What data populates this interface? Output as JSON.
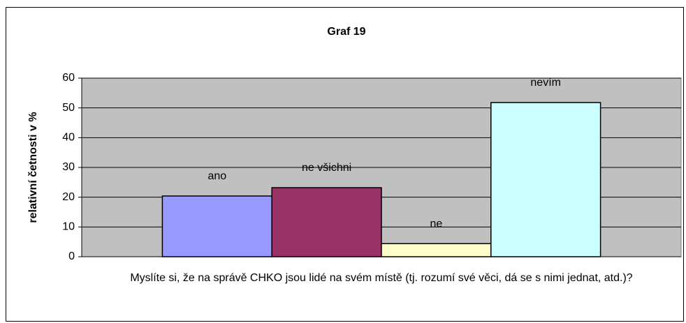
{
  "chart_data": {
    "type": "bar",
    "title": "Graf 19",
    "ylabel": "relativní četnosti v %",
    "categories": [
      "Myslíte si, že na správě CHKO jsou lidé na svém místě (tj. rozumí své věci, dá se s nimi jednat, atd.)?"
    ],
    "series": [
      {
        "name": "ano",
        "color": "#9999ff",
        "values": [
          20.4
        ]
      },
      {
        "name": "ne všichni",
        "color": "#993366",
        "values": [
          23.2
        ]
      },
      {
        "name": "ne",
        "color": "#ffffcc",
        "values": [
          4.4
        ]
      },
      {
        "name": "nevím",
        "color": "#ccffff",
        "values": [
          51.8
        ]
      }
    ],
    "ylim": [
      0,
      60
    ],
    "yticks": [
      0,
      10,
      20,
      30,
      40,
      50,
      60
    ],
    "grid": true,
    "plot_background": "#c0c0c0"
  }
}
